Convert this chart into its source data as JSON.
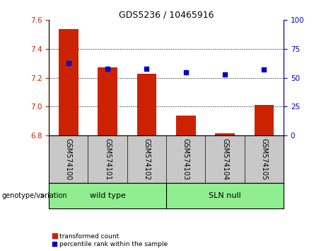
{
  "title": "GDS5236 / 10465916",
  "categories": [
    "GSM574100",
    "GSM574101",
    "GSM574102",
    "GSM574103",
    "GSM574104",
    "GSM574105"
  ],
  "red_values": [
    7.54,
    7.27,
    7.23,
    6.94,
    6.815,
    7.01
  ],
  "blue_values": [
    63,
    58,
    58,
    55,
    53,
    57
  ],
  "baseline": 6.8,
  "ylim_left": [
    6.8,
    7.6
  ],
  "ylim_right": [
    0,
    100
  ],
  "yticks_left": [
    6.8,
    7.0,
    7.2,
    7.4,
    7.6
  ],
  "yticks_right": [
    0,
    25,
    50,
    75,
    100
  ],
  "bar_color": "#CC2200",
  "dot_color": "#0000CC",
  "bar_width": 0.5,
  "tick_color_left": "#CC2200",
  "tick_color_right": "#0000CC",
  "legend_labels": [
    "transformed count",
    "percentile rank within the sample"
  ],
  "wt_label": "wild type",
  "sln_label": "SLN null",
  "group_label": "genotype/variation",
  "group_box_color": "#90EE90",
  "xticklabel_bg": "#C8C8C8",
  "title_fontsize": 9,
  "axis_fontsize": 7.5,
  "label_fontsize": 7,
  "legend_fontsize": 6.5,
  "group_fontsize": 8
}
